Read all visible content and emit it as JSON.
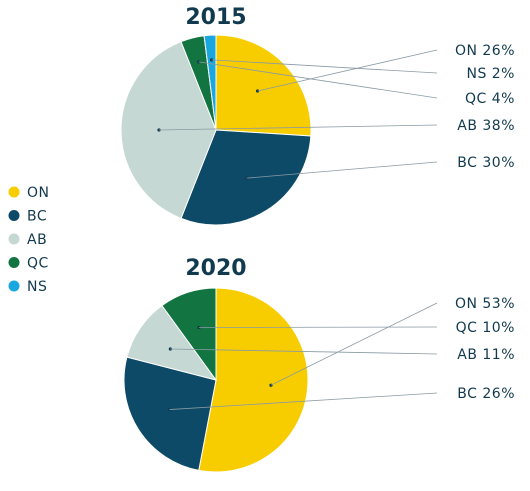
{
  "colors": {
    "ON": "#f8cd00",
    "BC": "#0d4a68",
    "AB": "#c5d8d3",
    "QC": "#127440",
    "NS": "#1aa7df",
    "text": "#123a4e",
    "leader": "#8a9aa3"
  },
  "legend": [
    {
      "key": "ON",
      "label": "ON"
    },
    {
      "key": "BC",
      "label": "BC"
    },
    {
      "key": "AB",
      "label": "AB"
    },
    {
      "key": "QC",
      "label": "QC"
    },
    {
      "key": "NS",
      "label": "NS"
    }
  ],
  "chart_data": [
    {
      "type": "pie",
      "title": "2015",
      "slices": [
        {
          "key": "ON",
          "value": 26,
          "label": "ON 26%"
        },
        {
          "key": "BC",
          "value": 30,
          "label": "BC 30%"
        },
        {
          "key": "AB",
          "value": 38,
          "label": "AB 38%"
        },
        {
          "key": "QC",
          "value": 4,
          "label": "QC 4%"
        },
        {
          "key": "NS",
          "value": 2,
          "label": "NS 2%"
        }
      ]
    },
    {
      "type": "pie",
      "title": "2020",
      "slices": [
        {
          "key": "ON",
          "value": 53,
          "label": "ON 53%"
        },
        {
          "key": "BC",
          "value": 26,
          "label": "BC 26%"
        },
        {
          "key": "AB",
          "value": 11,
          "label": "AB 11%"
        },
        {
          "key": "QC",
          "value": 10,
          "label": "QC 10%"
        }
      ]
    }
  ]
}
